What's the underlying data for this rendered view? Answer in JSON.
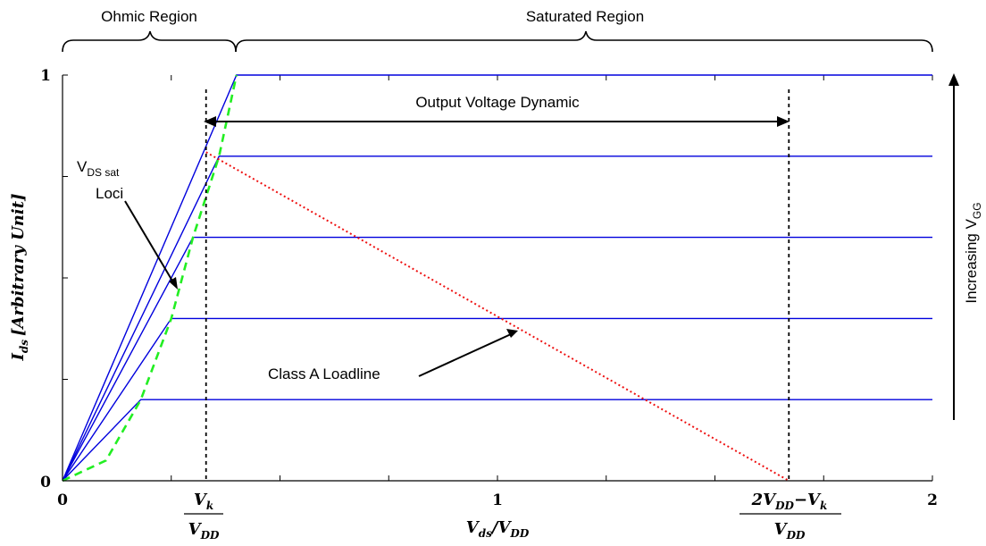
{
  "chart_data": {
    "type": "line",
    "xlabel_parts": {
      "main": "V",
      "main_sub": "ds",
      "slash": "/",
      "den": "V",
      "den_sub": "DD"
    },
    "ylabel_parts": {
      "main": "I",
      "main_sub": "ds",
      "bracket": "[Arbitrary Unit]"
    },
    "xlim": [
      0,
      2
    ],
    "ylim": [
      0,
      1
    ],
    "x_ticks": [
      {
        "value": 0,
        "label": "0"
      },
      {
        "value": 1,
        "label": "1"
      },
      {
        "value": 2,
        "label": "2"
      }
    ],
    "y_ticks": [
      {
        "value": 0,
        "label": "0"
      },
      {
        "value": 1,
        "label": "1"
      }
    ],
    "vk_label": {
      "num": "V",
      "num_sub": "k",
      "den": "V",
      "den_sub": "DD"
    },
    "vmax_label": {
      "num_a": "2V",
      "num_a_sub": "DD",
      "num_b": "−V",
      "num_b_sub": "k",
      "den": "V",
      "den_sub": "DD"
    },
    "series": [
      {
        "values": [
          [
            0,
            0
          ],
          [
            0.18,
            0.2
          ],
          [
            2,
            0.2
          ]
        ]
      },
      {
        "values": [
          [
            0,
            0
          ],
          [
            0.25,
            0.4
          ],
          [
            2,
            0.4
          ]
        ]
      },
      {
        "values": [
          [
            0,
            0
          ],
          [
            0.3,
            0.6
          ],
          [
            2,
            0.6
          ]
        ]
      },
      {
        "values": [
          [
            0,
            0
          ],
          [
            0.36,
            0.8
          ],
          [
            2,
            0.8
          ]
        ]
      },
      {
        "values": [
          [
            0,
            0
          ],
          [
            0.4,
            1.0
          ],
          [
            2,
            1.0
          ]
        ]
      }
    ],
    "vdssat_loci": [
      [
        0,
        0
      ],
      [
        0.1,
        0.05
      ],
      [
        0.18,
        0.2
      ],
      [
        0.25,
        0.4
      ],
      [
        0.3,
        0.6
      ],
      [
        0.36,
        0.8
      ],
      [
        0.4,
        1.0
      ]
    ],
    "loadline": [
      [
        0.33,
        0.81
      ],
      [
        1.67,
        0
      ]
    ],
    "vk_x": 0.33,
    "vmax_x": 1.67,
    "colors": {
      "series": "#0000dd",
      "loci": "#22ee22",
      "loadline": "#ee1111",
      "axis": "#000000"
    },
    "annotations": {
      "ohmic_region": "Ohmic Region",
      "saturated_region": "Saturated Region",
      "output_voltage_dynamic": "Output Voltage Dynamic",
      "vds_sat_main": "V",
      "vds_sat_sub": "DS sat",
      "loci": "Loci",
      "class_a_loadline": "Class A Loadline",
      "increasing_main": "Increasing V",
      "increasing_sub": "GG"
    }
  }
}
